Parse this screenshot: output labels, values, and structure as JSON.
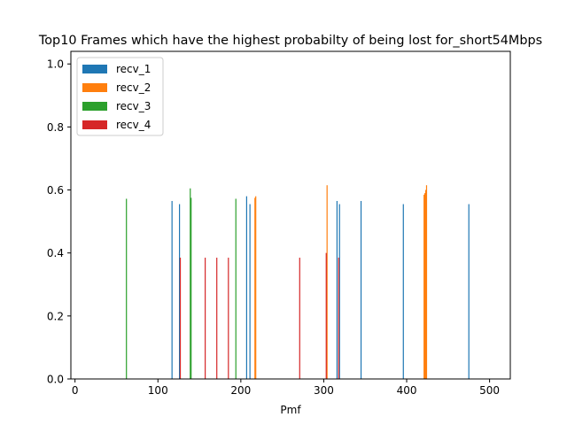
{
  "chart_data": {
    "type": "bar",
    "title": "Top10 Frames which have the highest probabilty of being lost for_short54Mbps",
    "xlabel": "Pmf",
    "ylabel": "",
    "xlim": [
      -5,
      525
    ],
    "ylim": [
      0,
      1.04
    ],
    "xticks": [
      0,
      100,
      200,
      300,
      400,
      500
    ],
    "yticks": [
      0.0,
      0.2,
      0.4,
      0.6,
      0.8,
      1.0
    ],
    "xtick_labels": [
      "0",
      "100",
      "200",
      "300",
      "400",
      "500"
    ],
    "ytick_labels": [
      "0.0",
      "0.2",
      "0.4",
      "0.6",
      "0.8",
      "1.0"
    ],
    "grid": false,
    "legend_position": "top-left",
    "series": [
      {
        "name": "recv_1",
        "color": "#1f77b4",
        "x": [
          117,
          126,
          207,
          211,
          316,
          319,
          345,
          396,
          475
        ],
        "values": [
          0.565,
          0.555,
          0.58,
          0.555,
          0.565,
          0.555,
          0.565,
          0.555,
          0.555
        ]
      },
      {
        "name": "recv_2",
        "color": "#ff7f0e",
        "x": [
          217,
          218,
          304,
          421,
          422,
          423,
          424
        ],
        "values": [
          0.575,
          0.58,
          0.615,
          0.585,
          0.59,
          0.6,
          0.615
        ]
      },
      {
        "name": "recv_3",
        "color": "#2ca02c",
        "x": [
          62,
          139,
          140,
          194
        ],
        "values": [
          0.572,
          0.605,
          0.575,
          0.572
        ]
      },
      {
        "name": "recv_4",
        "color": "#d62728",
        "x": [
          127,
          157,
          171,
          185,
          271,
          303,
          318
        ],
        "values": [
          0.385,
          0.385,
          0.385,
          0.385,
          0.385,
          0.4,
          0.385
        ]
      }
    ]
  }
}
